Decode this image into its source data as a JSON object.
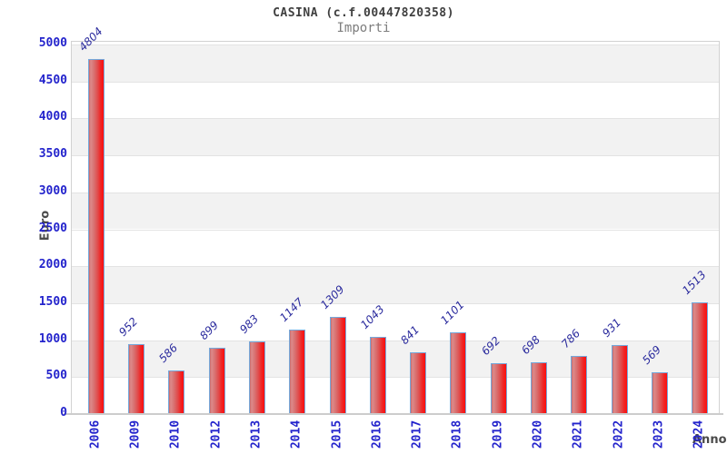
{
  "header": {
    "title": "CASINA (c.f.00447820358)",
    "subtitle": "Importi"
  },
  "chart_data": {
    "type": "bar",
    "title": "CASINA (c.f.00447820358)",
    "subtitle": "Importi",
    "xlabel": "Anno",
    "ylabel": "Euro",
    "categories": [
      "2006",
      "2009",
      "2010",
      "2012",
      "2013",
      "2014",
      "2015",
      "2016",
      "2017",
      "2018",
      "2019",
      "2020",
      "2021",
      "2022",
      "2023",
      "2024"
    ],
    "values": [
      4804,
      952,
      586,
      899,
      983,
      1147,
      1309,
      1043,
      841,
      1101,
      692,
      698,
      786,
      931,
      569,
      1513
    ],
    "ylim": [
      0,
      5000
    ],
    "ytick_step": 500,
    "yticks": [
      0,
      500,
      1000,
      1500,
      2000,
      2500,
      3000,
      3500,
      4000,
      4500,
      5000
    ],
    "grid": "horizontal-alternating-bands",
    "legend": "none",
    "colors": {
      "bar_gradient": [
        "#c96a6a",
        "#dd8a8a",
        "#e04e4e",
        "#fd0e0e"
      ],
      "bar_border": "#74a9dc",
      "band": "#f2f2f2",
      "gridline": "#e3e3e3",
      "tick_label": "#2323cc",
      "value_label": "#2a2a9d",
      "axis_title": "#4a4a4a",
      "title": "#3f3f3f",
      "subtitle": "#7d7d7d"
    }
  }
}
